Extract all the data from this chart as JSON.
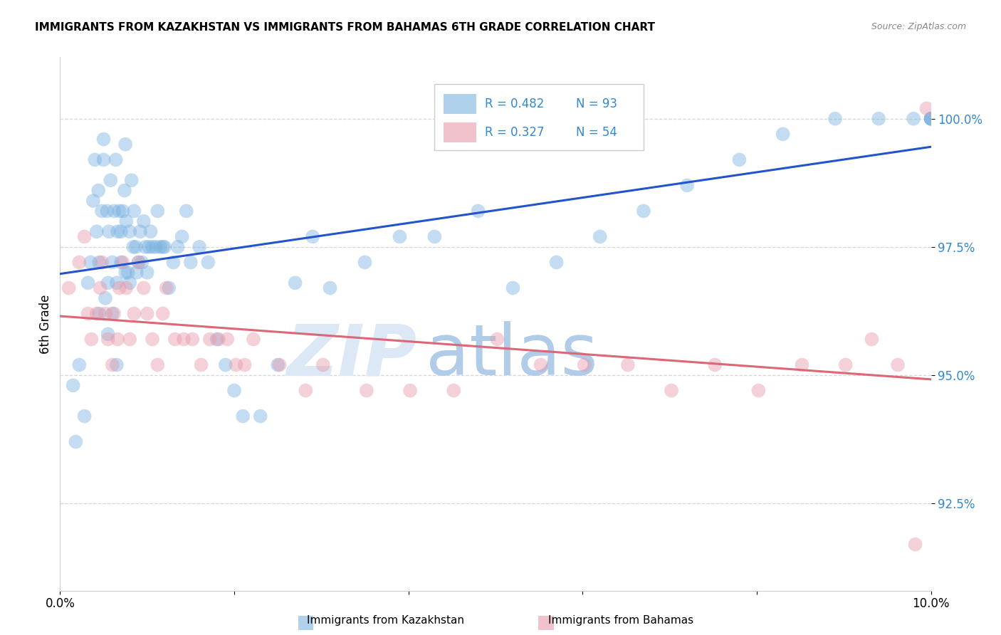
{
  "title": "IMMIGRANTS FROM KAZAKHSTAN VS IMMIGRANTS FROM BAHAMAS 6TH GRADE CORRELATION CHART",
  "source": "Source: ZipAtlas.com",
  "ylabel": "6th Grade",
  "xmin": 0.0,
  "xmax": 10.0,
  "ymin": 90.8,
  "ymax": 101.2,
  "yticks": [
    92.5,
    95.0,
    97.5,
    100.0
  ],
  "ytick_labels": [
    "92.5%",
    "95.0%",
    "97.5%",
    "100.0%"
  ],
  "blue_color": "#7ab3e0",
  "pink_color": "#e89aaa",
  "blue_line_color": "#2255cc",
  "pink_line_color": "#dd6677",
  "blue_legend_label": "Immigrants from Kazakhstan",
  "pink_legend_label": "Immigrants from Bahamas",
  "blue_x": [
    0.15,
    0.18,
    0.22,
    0.28,
    0.32,
    0.35,
    0.38,
    0.4,
    0.42,
    0.44,
    0.45,
    0.45,
    0.48,
    0.5,
    0.5,
    0.52,
    0.54,
    0.55,
    0.55,
    0.56,
    0.58,
    0.6,
    0.6,
    0.62,
    0.64,
    0.65,
    0.65,
    0.66,
    0.68,
    0.7,
    0.7,
    0.72,
    0.74,
    0.75,
    0.75,
    0.76,
    0.78,
    0.8,
    0.8,
    0.82,
    0.84,
    0.85,
    0.87,
    0.88,
    0.9,
    0.92,
    0.94,
    0.96,
    0.98,
    1.0,
    1.02,
    1.04,
    1.06,
    1.1,
    1.12,
    1.15,
    1.18,
    1.2,
    1.25,
    1.3,
    1.35,
    1.4,
    1.45,
    1.5,
    1.6,
    1.7,
    1.8,
    1.9,
    2.0,
    2.1,
    2.3,
    2.5,
    2.7,
    2.9,
    3.1,
    3.5,
    3.9,
    4.3,
    4.8,
    5.2,
    5.7,
    6.2,
    6.7,
    7.2,
    7.8,
    8.3,
    8.9,
    9.4,
    9.8,
    10.0,
    10.0,
    10.0,
    10.0
  ],
  "blue_y": [
    94.8,
    93.7,
    95.2,
    94.2,
    96.8,
    97.2,
    98.4,
    99.2,
    97.8,
    98.6,
    96.2,
    97.2,
    98.2,
    99.2,
    99.6,
    96.5,
    98.2,
    95.8,
    96.8,
    97.8,
    98.8,
    96.2,
    97.2,
    98.2,
    99.2,
    95.2,
    96.8,
    97.8,
    98.2,
    97.2,
    97.8,
    98.2,
    98.6,
    97.0,
    99.5,
    98.0,
    97.0,
    96.8,
    97.8,
    98.8,
    97.5,
    98.2,
    97.5,
    97.0,
    97.2,
    97.8,
    97.2,
    98.0,
    97.5,
    97.0,
    97.5,
    97.8,
    97.5,
    97.5,
    98.2,
    97.5,
    97.5,
    97.5,
    96.7,
    97.2,
    97.5,
    97.7,
    98.2,
    97.2,
    97.5,
    97.2,
    95.7,
    95.2,
    94.7,
    94.2,
    94.2,
    95.2,
    96.8,
    97.7,
    96.7,
    97.2,
    97.7,
    97.7,
    98.2,
    96.7,
    97.2,
    97.7,
    98.2,
    98.7,
    99.2,
    99.7,
    100.0,
    100.0,
    100.0,
    100.0,
    100.0,
    100.0,
    100.0
  ],
  "pink_x": [
    0.1,
    0.22,
    0.28,
    0.32,
    0.36,
    0.42,
    0.46,
    0.48,
    0.52,
    0.55,
    0.6,
    0.62,
    0.66,
    0.68,
    0.72,
    0.76,
    0.8,
    0.85,
    0.9,
    0.96,
    1.0,
    1.06,
    1.12,
    1.18,
    1.22,
    1.32,
    1.42,
    1.52,
    1.62,
    1.72,
    1.82,
    1.92,
    2.02,
    2.12,
    2.22,
    2.52,
    2.82,
    3.02,
    3.52,
    4.02,
    4.52,
    5.02,
    5.52,
    6.02,
    6.52,
    7.02,
    7.52,
    8.02,
    8.52,
    9.02,
    9.32,
    9.62,
    9.82,
    9.95
  ],
  "pink_y": [
    96.7,
    97.2,
    97.7,
    96.2,
    95.7,
    96.2,
    96.7,
    97.2,
    96.2,
    95.7,
    95.2,
    96.2,
    95.7,
    96.7,
    97.2,
    96.7,
    95.7,
    96.2,
    97.2,
    96.7,
    96.2,
    95.7,
    95.2,
    96.2,
    96.7,
    95.7,
    95.7,
    95.7,
    95.2,
    95.7,
    95.7,
    95.7,
    95.2,
    95.2,
    95.7,
    95.2,
    94.7,
    95.2,
    94.7,
    94.7,
    94.7,
    95.7,
    95.2,
    95.2,
    95.2,
    94.7,
    95.2,
    94.7,
    95.2,
    95.2,
    95.7,
    95.2,
    91.7,
    100.2
  ]
}
